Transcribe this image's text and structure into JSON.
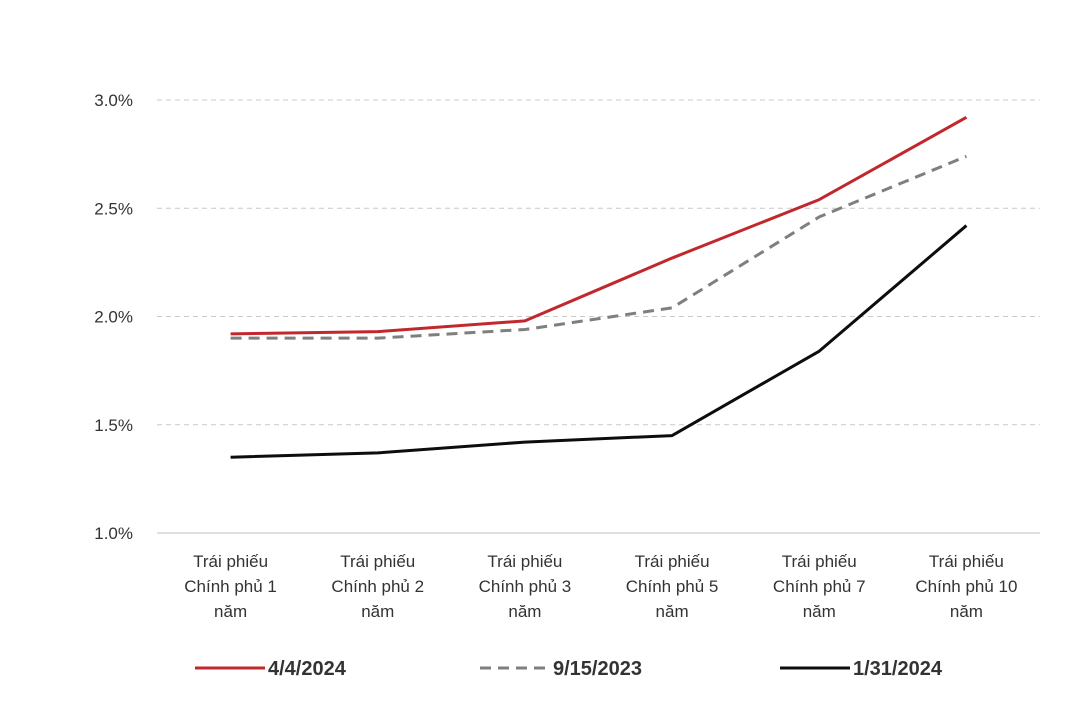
{
  "chart_data": {
    "type": "line",
    "title": "",
    "xlabel": "",
    "ylabel": "",
    "categories": [
      [
        "Trái phiếu",
        "Chính phủ 1",
        "năm"
      ],
      [
        "Trái phiếu",
        "Chính phủ 2",
        "năm"
      ],
      [
        "Trái phiếu",
        "Chính phủ 3",
        "năm"
      ],
      [
        "Trái phiếu",
        "Chính phủ 5",
        "năm"
      ],
      [
        "Trái phiếu",
        "Chính phủ 7",
        "năm"
      ],
      [
        "Trái phiếu",
        "Chính phủ 10",
        "năm"
      ]
    ],
    "ylim": [
      1.0,
      3.0
    ],
    "yticks": [
      {
        "value": 3.0,
        "label": "3.0%"
      },
      {
        "value": 2.5,
        "label": "2.5%"
      },
      {
        "value": 2.0,
        "label": "2.0%"
      },
      {
        "value": 1.5,
        "label": "1.5%"
      },
      {
        "value": 1.0,
        "label": "1.0%"
      }
    ],
    "grid": "horizontal-dashed",
    "legend_position": "bottom",
    "series": [
      {
        "name": "4/4/2024",
        "color": "#c0282d",
        "dash": "solid",
        "values": [
          1.92,
          1.93,
          1.98,
          2.27,
          2.54,
          2.92
        ]
      },
      {
        "name": "9/15/2023",
        "color": "#7f7f7f",
        "dash": "dashed",
        "values": [
          1.9,
          1.9,
          1.94,
          2.04,
          2.46,
          2.74
        ]
      },
      {
        "name": "1/31/2024",
        "color": "#0d0d0d",
        "dash": "solid",
        "values": [
          1.35,
          1.37,
          1.42,
          1.45,
          1.84,
          2.42
        ]
      }
    ]
  }
}
